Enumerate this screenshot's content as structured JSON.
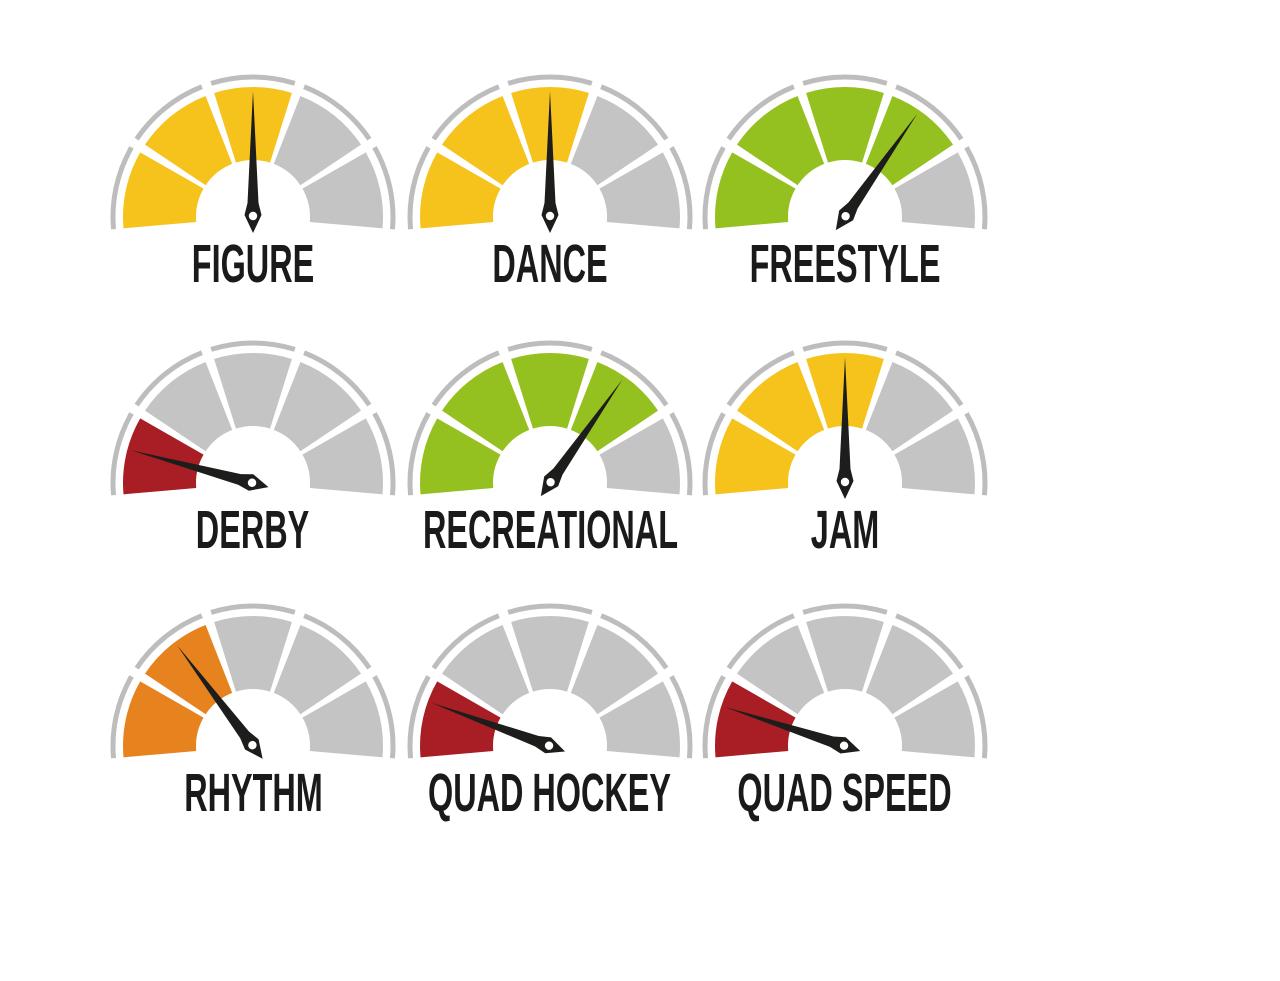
{
  "canvas": {
    "background": "#ffffff"
  },
  "palette": {
    "yellow": "#f6c31c",
    "green": "#94c11f",
    "orange": "#e6831f",
    "red": "#a81e24",
    "segment_gray": "#c4c4c4",
    "rim_gray": "#bdbdbd",
    "gap_white": "#ffffff",
    "needle_black": "#1d1d1b",
    "label_black": "#1a1a1a"
  },
  "chart_data": {
    "type": "gauge",
    "grid": {
      "rows": 3,
      "cols": 3
    },
    "gauge_scale": {
      "segments_total": 5,
      "needle_angle_convention": "180 = leftmost (minimum), 90 = vertical, 0 = rightmost (maximum)"
    },
    "gauges": [
      {
        "label": "FIGURE",
        "segments_filled": 3,
        "fill_color_name": "yellow",
        "fill_color": "#f6c31c",
        "needle_angle_deg": 90,
        "value_fraction": 0.5
      },
      {
        "label": "DANCE",
        "segments_filled": 3,
        "fill_color_name": "yellow",
        "fill_color": "#f6c31c",
        "needle_angle_deg": 90,
        "value_fraction": 0.5
      },
      {
        "label": "FREESTYLE",
        "segments_filled": 4,
        "fill_color_name": "green",
        "fill_color": "#94c11f",
        "needle_angle_deg": 55,
        "value_fraction": 0.69
      },
      {
        "label": "DERBY",
        "segments_filled": 1,
        "fill_color_name": "red",
        "fill_color": "#a81e24",
        "needle_angle_deg": 165,
        "value_fraction": 0.08
      },
      {
        "label": "RECREATIONAL",
        "segments_filled": 4,
        "fill_color_name": "green",
        "fill_color": "#94c11f",
        "needle_angle_deg": 55,
        "value_fraction": 0.69
      },
      {
        "label": "JAM",
        "segments_filled": 3,
        "fill_color_name": "yellow",
        "fill_color": "#f6c31c",
        "needle_angle_deg": 90,
        "value_fraction": 0.5
      },
      {
        "label": "RHYTHM",
        "segments_filled": 2,
        "fill_color_name": "orange",
        "fill_color": "#e6831f",
        "needle_angle_deg": 127,
        "value_fraction": 0.29
      },
      {
        "label": "QUAD HOCKEY",
        "segments_filled": 1,
        "fill_color_name": "red",
        "fill_color": "#a81e24",
        "needle_angle_deg": 160,
        "value_fraction": 0.11
      },
      {
        "label": "QUAD SPEED",
        "segments_filled": 1,
        "fill_color_name": "red",
        "fill_color": "#a81e24",
        "needle_angle_deg": 162,
        "value_fraction": 0.1
      }
    ]
  }
}
